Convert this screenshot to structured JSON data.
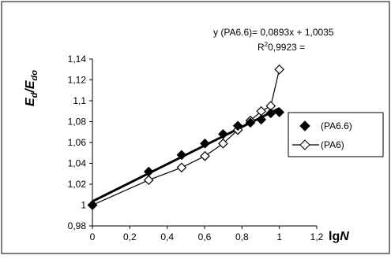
{
  "chart_data": {
    "type": "scatter",
    "annotations": {
      "equation": "y (PA6.6)= 0,0893x + 1,0035",
      "r2_prefix": "R",
      "r2_sup": "2",
      "r2_suffix": "0,9923 ="
    },
    "ylabel": {
      "E1": "E",
      "E1_sub": "d",
      "slash": "/E",
      "E2_sub": "do"
    },
    "xlabel": {
      "prefix": "lg",
      "var": "N"
    },
    "xlim": [
      0,
      1.2
    ],
    "ylim": [
      0.98,
      1.14
    ],
    "x_ticks": [
      {
        "v": 0,
        "label": "0"
      },
      {
        "v": 0.2,
        "label": "0,2"
      },
      {
        "v": 0.4,
        "label": "0,4"
      },
      {
        "v": 0.6,
        "label": "0,6"
      },
      {
        "v": 0.8,
        "label": "0,8"
      },
      {
        "v": 1.0,
        "label": "1"
      },
      {
        "v": 1.2,
        "label": "1,2"
      }
    ],
    "y_ticks": [
      {
        "v": 0.98,
        "label": "0,98"
      },
      {
        "v": 1.0,
        "label": "1"
      },
      {
        "v": 1.02,
        "label": "1,02"
      },
      {
        "v": 1.04,
        "label": "1,04"
      },
      {
        "v": 1.06,
        "label": "1,06"
      },
      {
        "v": 1.08,
        "label": "1,08"
      },
      {
        "v": 1.1,
        "label": "1,1"
      },
      {
        "v": 1.12,
        "label": "1,12"
      },
      {
        "v": 1.14,
        "label": "1,14"
      }
    ],
    "grid": false,
    "legend_position": "right",
    "series": [
      {
        "name": "(PA6.6)",
        "marker": "diamond-filled",
        "line": false,
        "color": "#000000",
        "x": [
          0,
          0.301,
          0.477,
          0.602,
          0.699,
          0.778,
          0.845,
          0.903,
          0.954,
          1.0
        ],
        "y": [
          1.0,
          1.032,
          1.048,
          1.059,
          1.068,
          1.076,
          1.079,
          1.082,
          1.088,
          1.089
        ]
      },
      {
        "name": "(PA6)",
        "marker": "diamond-open",
        "line": true,
        "color": "#000000",
        "x": [
          0,
          0.301,
          0.477,
          0.602,
          0.699,
          0.778,
          0.845,
          0.903,
          0.954,
          1.0
        ],
        "y": [
          1.0,
          1.024,
          1.036,
          1.047,
          1.059,
          1.072,
          1.081,
          1.09,
          1.095,
          1.13
        ]
      },
      {
        "trendline_for": "(PA6.6)",
        "slope": 0.0893,
        "intercept": 1.0035,
        "x_range": [
          0,
          1.0
        ],
        "color": "#000000"
      }
    ]
  }
}
